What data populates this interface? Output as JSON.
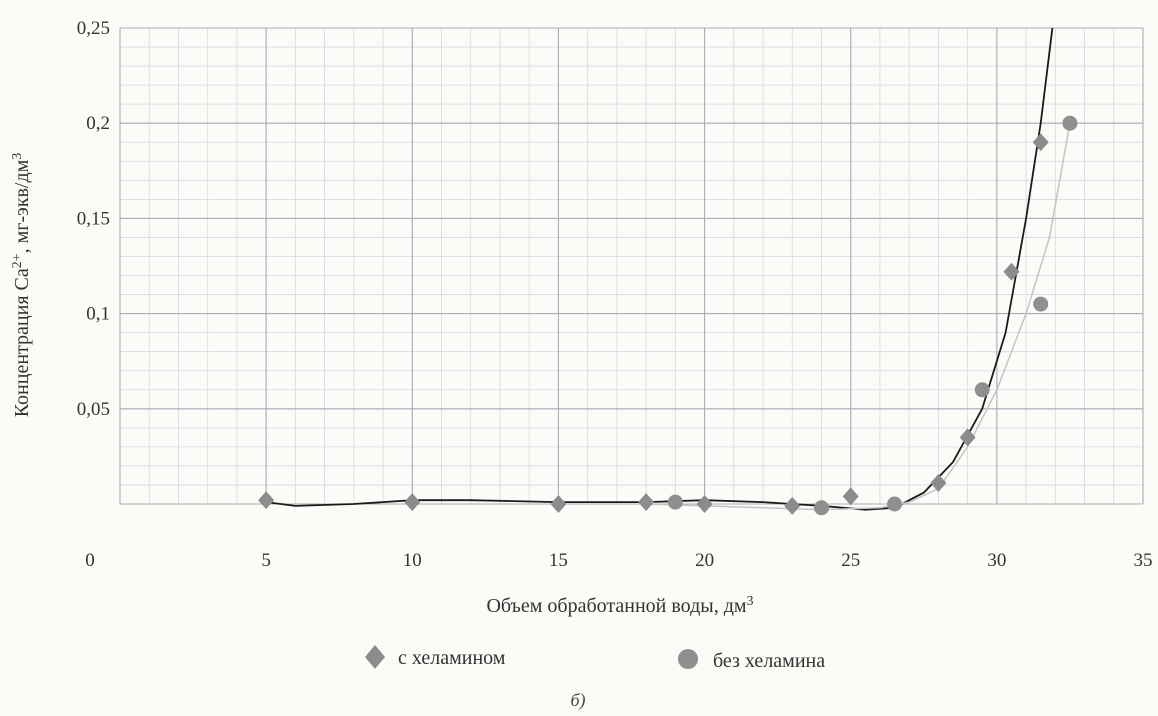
{
  "chart_data": {
    "type": "scatter",
    "xlabel": "Объем обработанной воды, дм",
    "xlabel_sup": "3",
    "ylabel_parts": [
      "Концентрация Ca",
      "2+",
      ", мг-экв/дм",
      "3"
    ],
    "xlim": [
      0,
      35
    ],
    "ylim": [
      0,
      0.25
    ],
    "x_ticks": [
      0,
      5,
      10,
      15,
      20,
      25,
      30,
      35
    ],
    "x_tick_labels": [
      "0",
      "5",
      "10",
      "15",
      "20",
      "25",
      "30",
      "35"
    ],
    "y_ticks": [
      0.05,
      0.1,
      0.15,
      0.2,
      0.25
    ],
    "y_tick_labels": [
      "0,05",
      "0,1",
      "0,15",
      "0,2",
      "0,25"
    ],
    "grid": true,
    "legend_position": "bottom",
    "series": [
      {
        "name": "с хеламином",
        "marker": "diamond",
        "color": "#8c8c8c",
        "trend_color": "#1a1a1a",
        "points": [
          [
            5,
            0.002
          ],
          [
            10,
            0.001
          ],
          [
            15,
            0.0
          ],
          [
            18,
            0.001
          ],
          [
            20,
            0.0
          ],
          [
            23,
            -0.001
          ],
          [
            25,
            0.004
          ],
          [
            28,
            0.011
          ],
          [
            29,
            0.035
          ],
          [
            30.5,
            0.122
          ],
          [
            31.5,
            0.19
          ]
        ],
        "trend": [
          [
            5,
            0.001
          ],
          [
            6,
            -0.001
          ],
          [
            8,
            0.0
          ],
          [
            10,
            0.002
          ],
          [
            12,
            0.002
          ],
          [
            15,
            0.001
          ],
          [
            18,
            0.001
          ],
          [
            20,
            0.002
          ],
          [
            22,
            0.001
          ],
          [
            24,
            -0.001
          ],
          [
            25.5,
            -0.003
          ],
          [
            26.5,
            -0.002
          ],
          [
            27.5,
            0.006
          ],
          [
            28.5,
            0.022
          ],
          [
            29.5,
            0.05
          ],
          [
            30.3,
            0.09
          ],
          [
            31,
            0.15
          ],
          [
            31.5,
            0.2
          ],
          [
            31.9,
            0.25
          ]
        ]
      },
      {
        "name": "без хеламина",
        "marker": "circle",
        "color": "#8f8f8f",
        "trend_color": "#c4c4c4",
        "points": [
          [
            19,
            0.001
          ],
          [
            24,
            -0.002
          ],
          [
            26.5,
            0.0
          ],
          [
            29.5,
            0.06
          ],
          [
            31.5,
            0.105
          ],
          [
            32.5,
            0.2
          ]
        ],
        "trend": [
          [
            18,
            0.0
          ],
          [
            20,
            -0.001
          ],
          [
            22,
            -0.002
          ],
          [
            24,
            -0.003
          ],
          [
            26,
            -0.002
          ],
          [
            27,
            0.001
          ],
          [
            28,
            0.008
          ],
          [
            29,
            0.03
          ],
          [
            30,
            0.06
          ],
          [
            31,
            0.1
          ],
          [
            31.8,
            0.14
          ],
          [
            32.5,
            0.2
          ]
        ]
      }
    ],
    "caption": "б)"
  }
}
